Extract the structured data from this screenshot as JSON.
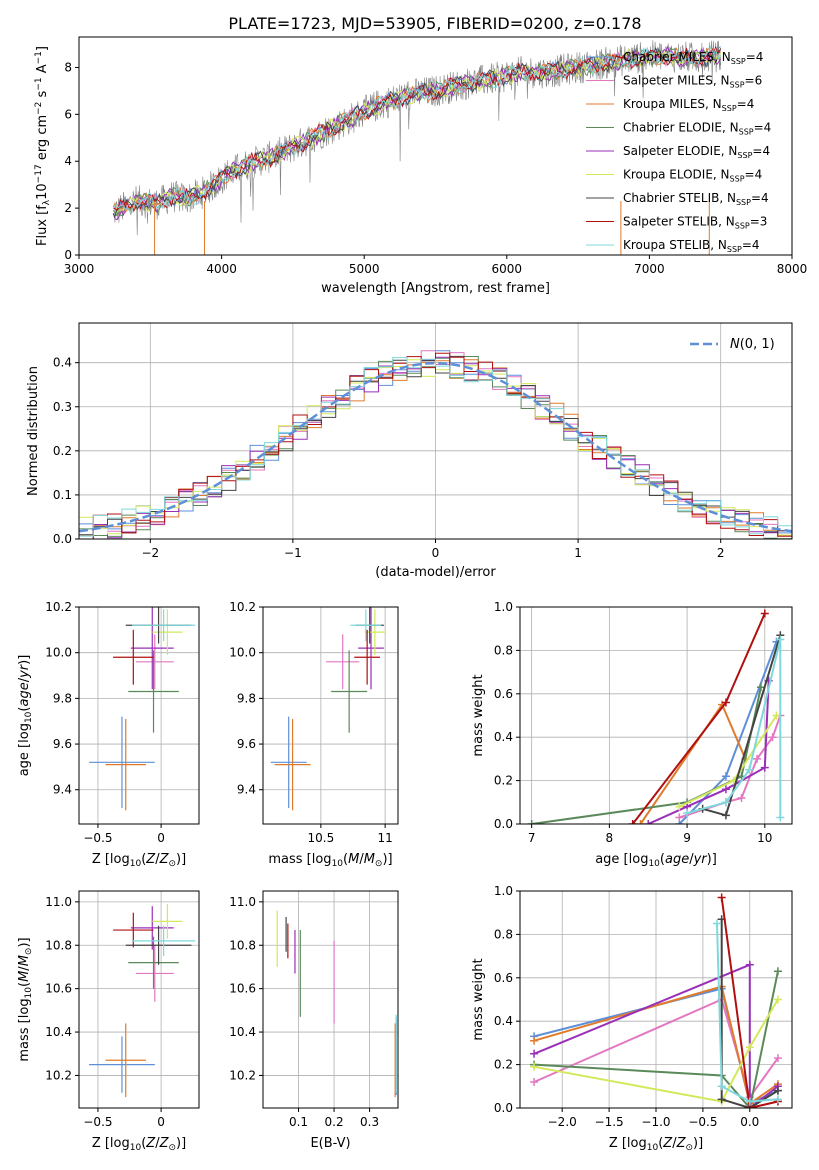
{
  "figure": {
    "title": "PLATE=1723, MJD=53905, FIBERID=0200, z=0.178"
  },
  "series_styles": [
    {
      "name": "Chabrier MILES",
      "nssp": "4",
      "color": "#5e8fd8"
    },
    {
      "name": "Salpeter MILES",
      "nssp": "6",
      "color": "#e377c2"
    },
    {
      "name": "Kroupa MILES",
      "nssp": "4",
      "color": "#e07b2c"
    },
    {
      "name": "Chabrier ELODIE",
      "nssp": "4",
      "color": "#5a8a5a"
    },
    {
      "name": "Salpeter ELODIE",
      "nssp": "4",
      "color": "#9a2fb8"
    },
    {
      "name": "Kroupa ELODIE",
      "nssp": "4",
      "color": "#d4e85a"
    },
    {
      "name": "Chabrier STELIB",
      "nssp": "4",
      "color": "#444444"
    },
    {
      "name": "Salpeter STELIB",
      "nssp": "3",
      "color": "#b01010"
    },
    {
      "name": "Kroupa STELIB",
      "nssp": "4",
      "color": "#7fd8dc"
    }
  ],
  "chart_data": [
    {
      "id": "spectrum",
      "type": "line",
      "xlabel": "wavelength [Angstrom, rest frame]",
      "ylabel": "Flux [f_λ 10^-17 erg cm^-2 s^-1 A^-1]",
      "xlim": [
        3000,
        8000
      ],
      "ylim": [
        0,
        9.3
      ],
      "xticks": [
        3000,
        4000,
        5000,
        6000,
        7000,
        8000
      ],
      "yticks": [
        0,
        2,
        4,
        6,
        8
      ],
      "grid": false,
      "legend_position": "right",
      "data_color": "#808080",
      "continuum": [
        [
          3240,
          1.8
        ],
        [
          3400,
          2.3
        ],
        [
          3550,
          2.2
        ],
        [
          3650,
          2.5
        ],
        [
          3750,
          2.4
        ],
        [
          3850,
          2.6
        ],
        [
          3950,
          3.0
        ],
        [
          4050,
          3.5
        ],
        [
          4200,
          3.9
        ],
        [
          4350,
          4.2
        ],
        [
          4500,
          4.6
        ],
        [
          4700,
          5.2
        ],
        [
          4900,
          5.8
        ],
        [
          5100,
          6.4
        ],
        [
          5300,
          6.8
        ],
        [
          5500,
          7.0
        ],
        [
          5700,
          7.3
        ],
        [
          5900,
          7.5
        ],
        [
          6100,
          7.8
        ],
        [
          6300,
          7.8
        ],
        [
          6500,
          8.0
        ],
        [
          6700,
          8.2
        ],
        [
          6900,
          8.4
        ],
        [
          7100,
          8.5
        ],
        [
          7300,
          8.4
        ],
        [
          7500,
          8.5
        ]
      ]
    },
    {
      "id": "residuals",
      "type": "step",
      "xlabel": "(data-model)/error",
      "ylabel": "Normed distribution",
      "xlim": [
        -2.5,
        2.5
      ],
      "ylim": [
        0,
        0.49
      ],
      "xticks": [
        -2,
        -1,
        0,
        1,
        2
      ],
      "yticks": [
        0.0,
        0.1,
        0.2,
        0.3,
        0.4
      ],
      "grid": true,
      "legend_label": "N(0, 1)",
      "legend_position": "top-right",
      "gaussian_color": "#5e8fd8"
    },
    {
      "id": "age-vs-z",
      "type": "errorbar",
      "xlabel": "Z [log10(Z/Z⊙)]",
      "ylabel": "age  [log10(age/yr)]",
      "xlim": [
        -0.65,
        0.3
      ],
      "ylim": [
        9.25,
        10.2
      ],
      "xticks": [
        -0.5,
        0.0
      ],
      "yticks": [
        9.4,
        9.6,
        9.8,
        10.0,
        10.2
      ],
      "grid": true,
      "points": [
        {
          "series": 0,
          "x": -0.31,
          "xerr": 0.26,
          "y": 9.52,
          "yerr": 0.2
        },
        {
          "series": 1,
          "x": -0.05,
          "xerr": 0.15,
          "y": 9.96,
          "yerr": 0.12
        },
        {
          "series": 2,
          "x": -0.28,
          "xerr": 0.16,
          "y": 9.51,
          "yerr": 0.2
        },
        {
          "series": 3,
          "x": -0.06,
          "xerr": 0.2,
          "y": 9.83,
          "yerr": 0.18
        },
        {
          "series": 4,
          "x": -0.07,
          "xerr": 0.17,
          "y": 10.02,
          "yerr": 0.18
        },
        {
          "series": 5,
          "x": 0.05,
          "xerr": 0.12,
          "y": 10.09,
          "yerr": 0.1
        },
        {
          "series": 6,
          "x": -0.02,
          "xerr": 0.26,
          "y": 10.12,
          "yerr": 0.08
        },
        {
          "series": 7,
          "x": -0.22,
          "xerr": 0.16,
          "y": 9.98,
          "yerr": 0.12
        },
        {
          "series": 8,
          "x": 0.02,
          "xerr": 0.25,
          "y": 10.12,
          "yerr": 0.07
        }
      ]
    },
    {
      "id": "age-vs-mass",
      "type": "errorbar",
      "xlabel": "mass [log10(M/M⊙)]",
      "ylabel": "",
      "xlim": [
        10.05,
        11.1
      ],
      "ylim": [
        9.25,
        10.2
      ],
      "xticks": [
        10.5,
        11.0
      ],
      "yticks": [
        9.4,
        9.6,
        9.8,
        10.0,
        10.2
      ],
      "grid": true,
      "points": [
        {
          "series": 0,
          "x": 10.25,
          "xerr": 0.14,
          "y": 9.52,
          "yerr": 0.2
        },
        {
          "series": 1,
          "x": 10.67,
          "xerr": 0.13,
          "y": 9.96,
          "yerr": 0.12
        },
        {
          "series": 2,
          "x": 10.28,
          "xerr": 0.14,
          "y": 9.51,
          "yerr": 0.2
        },
        {
          "series": 3,
          "x": 10.72,
          "xerr": 0.14,
          "y": 9.83,
          "yerr": 0.18
        },
        {
          "series": 4,
          "x": 10.89,
          "xerr": 0.1,
          "y": 10.02,
          "yerr": 0.18
        },
        {
          "series": 5,
          "x": 10.92,
          "xerr": 0.08,
          "y": 10.09,
          "yerr": 0.1
        },
        {
          "series": 6,
          "x": 10.88,
          "xerr": 0.11,
          "y": 10.12,
          "yerr": 0.08
        },
        {
          "series": 7,
          "x": 10.86,
          "xerr": 0.1,
          "y": 9.98,
          "yerr": 0.12
        },
        {
          "series": 8,
          "x": 10.85,
          "xerr": 0.12,
          "y": 10.12,
          "yerr": 0.07
        }
      ]
    },
    {
      "id": "massweight-vs-age",
      "type": "line",
      "xlabel": "age  [log10(age/yr)]",
      "ylabel": "mass weight",
      "xlim": [
        6.85,
        10.35
      ],
      "ylim": [
        0,
        1.0
      ],
      "xticks": [
        7,
        8,
        9,
        10
      ],
      "yticks": [
        0.0,
        0.2,
        0.4,
        0.6,
        0.8,
        1.0
      ],
      "grid": true,
      "series": [
        {
          "series": 0,
          "points": [
            [
              8.9,
              0.0
            ],
            [
              9.5,
              0.22
            ],
            [
              10.15,
              0.84
            ]
          ]
        },
        {
          "series": 1,
          "points": [
            [
              8.9,
              0.03
            ],
            [
              9.5,
              0.1
            ],
            [
              9.7,
              0.12
            ],
            [
              9.9,
              0.3
            ],
            [
              10.1,
              0.4
            ],
            [
              10.2,
              0.5
            ]
          ]
        },
        {
          "series": 2,
          "points": [
            [
              8.4,
              0.0
            ],
            [
              9.45,
              0.55
            ],
            [
              9.75,
              0.3
            ]
          ]
        },
        {
          "series": 3,
          "points": [
            [
              7.0,
              0.0
            ],
            [
              9.0,
              0.1
            ],
            [
              9.7,
              0.22
            ],
            [
              9.95,
              0.63
            ]
          ]
        },
        {
          "series": 4,
          "points": [
            [
              8.5,
              0.0
            ],
            [
              9.0,
              0.08
            ],
            [
              9.5,
              0.16
            ],
            [
              10.0,
              0.26
            ],
            [
              10.05,
              0.66
            ]
          ]
        },
        {
          "series": 5,
          "points": [
            [
              8.9,
              0.08
            ],
            [
              9.6,
              0.2
            ],
            [
              10.15,
              0.5
            ]
          ]
        },
        {
          "series": 6,
          "points": [
            [
              9.2,
              0.07
            ],
            [
              9.5,
              0.04
            ],
            [
              10.2,
              0.87
            ]
          ]
        },
        {
          "series": 7,
          "points": [
            [
              8.3,
              0.0
            ],
            [
              9.5,
              0.56
            ],
            [
              10.0,
              0.97
            ]
          ]
        },
        {
          "series": 8,
          "points": [
            [
              9.0,
              0.05
            ],
            [
              9.5,
              0.1
            ],
            [
              9.8,
              0.25
            ],
            [
              10.2,
              0.85
            ],
            [
              10.2,
              0.03
            ]
          ]
        }
      ]
    },
    {
      "id": "mass-vs-z",
      "type": "errorbar",
      "xlabel": "Z [log10(Z/Z⊙)]",
      "ylabel": "mass [log10(M/M⊙)]",
      "xlim": [
        -0.65,
        0.3
      ],
      "ylim": [
        10.05,
        11.05
      ],
      "xticks": [
        -0.5,
        0.0
      ],
      "yticks": [
        10.2,
        10.4,
        10.6,
        10.8,
        11.0
      ],
      "grid": true,
      "points": [
        {
          "series": 0,
          "x": -0.31,
          "xerr": 0.26,
          "y": 10.25,
          "yerr": 0.13
        },
        {
          "series": 1,
          "x": -0.05,
          "xerr": 0.15,
          "y": 10.67,
          "yerr": 0.13
        },
        {
          "series": 2,
          "x": -0.28,
          "xerr": 0.16,
          "y": 10.27,
          "yerr": 0.17
        },
        {
          "series": 3,
          "x": -0.06,
          "xerr": 0.2,
          "y": 10.72,
          "yerr": 0.12
        },
        {
          "series": 4,
          "x": -0.07,
          "xerr": 0.17,
          "y": 10.88,
          "yerr": 0.1
        },
        {
          "series": 5,
          "x": 0.05,
          "xerr": 0.12,
          "y": 10.91,
          "yerr": 0.08
        },
        {
          "series": 6,
          "x": -0.02,
          "xerr": 0.26,
          "y": 10.8,
          "yerr": 0.09
        },
        {
          "series": 7,
          "x": -0.22,
          "xerr": 0.16,
          "y": 10.87,
          "yerr": 0.08
        },
        {
          "series": 8,
          "x": 0.02,
          "xerr": 0.25,
          "y": 10.82,
          "yerr": 0.07
        }
      ]
    },
    {
      "id": "mass-vs-ebv",
      "type": "errorbar",
      "xlabel": "E(B-V)",
      "ylabel": "",
      "xlim": [
        0.0,
        0.38
      ],
      "ylim": [
        10.05,
        11.05
      ],
      "xticks": [
        0.1,
        0.2,
        0.3
      ],
      "yticks": [
        10.2,
        10.4,
        10.6,
        10.8,
        11.0
      ],
      "grid": true,
      "points": [
        {
          "series": 0,
          "x": 0.375,
          "xerr": 0,
          "y": 10.29,
          "yerr": 0.18
        },
        {
          "series": 1,
          "x": 0.2,
          "xerr": 0,
          "y": 10.63,
          "yerr": 0.19
        },
        {
          "series": 2,
          "x": 0.372,
          "xerr": 0,
          "y": 10.27,
          "yerr": 0.17
        },
        {
          "series": 3,
          "x": 0.105,
          "xerr": 0,
          "y": 10.67,
          "yerr": 0.2
        },
        {
          "series": 4,
          "x": 0.09,
          "xerr": 0,
          "y": 10.77,
          "yerr": 0.1
        },
        {
          "series": 5,
          "x": 0.04,
          "xerr": 0,
          "y": 10.83,
          "yerr": 0.13
        },
        {
          "series": 6,
          "x": 0.065,
          "xerr": 0,
          "y": 10.85,
          "yerr": 0.08
        },
        {
          "series": 7,
          "x": 0.07,
          "xerr": 0,
          "y": 10.82,
          "yerr": 0.08
        },
        {
          "series": 8,
          "x": 0.375,
          "xerr": 0,
          "y": 10.3,
          "yerr": 0.18
        }
      ]
    },
    {
      "id": "massweight-vs-z",
      "type": "line",
      "xlabel": "Z [log10(Z/Z⊙)]",
      "ylabel": "mass weight",
      "xlim": [
        -2.45,
        0.45
      ],
      "ylim": [
        0,
        1.0
      ],
      "xticks": [
        -2.0,
        -1.5,
        -1.0,
        -0.5,
        0.0
      ],
      "yticks": [
        0.0,
        0.2,
        0.4,
        0.6,
        0.8,
        1.0
      ],
      "grid": true,
      "series": [
        {
          "series": 0,
          "points": [
            [
              -2.3,
              0.33
            ],
            [
              -0.3,
              0.55
            ],
            [
              0.0,
              0.02
            ],
            [
              0.3,
              0.08
            ]
          ]
        },
        {
          "series": 1,
          "points": [
            [
              -2.3,
              0.12
            ],
            [
              -0.3,
              0.5
            ],
            [
              0.0,
              0.05
            ],
            [
              0.3,
              0.23
            ]
          ]
        },
        {
          "series": 2,
          "points": [
            [
              -2.3,
              0.31
            ],
            [
              -0.3,
              0.56
            ],
            [
              0.0,
              0.02
            ],
            [
              0.3,
              0.11
            ]
          ]
        },
        {
          "series": 3,
          "points": [
            [
              -2.3,
              0.2
            ],
            [
              -0.3,
              0.15
            ],
            [
              0.0,
              0.0
            ],
            [
              0.3,
              0.63
            ]
          ]
        },
        {
          "series": 4,
          "points": [
            [
              -2.3,
              0.25
            ],
            [
              0.0,
              0.66
            ],
            [
              0.0,
              0.0
            ],
            [
              0.3,
              0.1
            ]
          ]
        },
        {
          "series": 5,
          "points": [
            [
              -2.3,
              0.19
            ],
            [
              -0.3,
              0.03
            ],
            [
              0.0,
              0.28
            ],
            [
              0.3,
              0.5
            ]
          ]
        },
        {
          "series": 6,
          "points": [
            [
              -0.3,
              0.87
            ],
            [
              -0.3,
              0.04
            ],
            [
              0.0,
              0.0
            ],
            [
              0.3,
              0.08
            ]
          ]
        },
        {
          "series": 7,
          "points": [
            [
              -0.3,
              0.97
            ],
            [
              0.0,
              0.0
            ],
            [
              0.3,
              0.03
            ]
          ]
        },
        {
          "series": 8,
          "points": [
            [
              -0.35,
              0.85
            ],
            [
              -0.3,
              0.1
            ],
            [
              0.0,
              0.03
            ],
            [
              0.3,
              0.04
            ]
          ]
        }
      ]
    }
  ]
}
